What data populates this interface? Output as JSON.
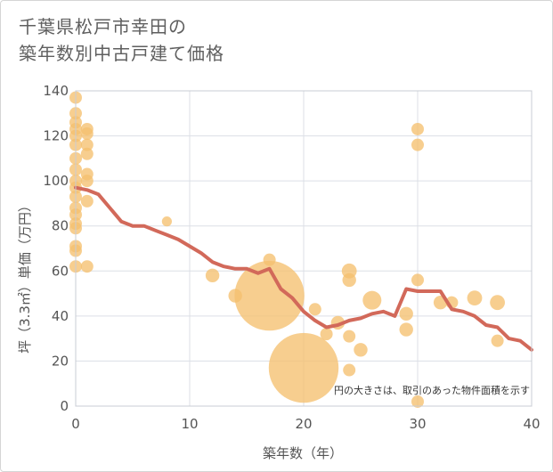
{
  "chart_data": {
    "type": "scatter",
    "title_lines": [
      "千葉県松戸市幸田の",
      "築年数別中古戸建て価格"
    ],
    "xlabel": "築年数（年）",
    "ylabel": "坪（3.3㎡）単価（万円）",
    "xlim": [
      0,
      40
    ],
    "ylim": [
      0,
      140
    ],
    "x_ticks": [
      0,
      10,
      20,
      30,
      40
    ],
    "y_ticks": [
      0,
      20,
      40,
      60,
      80,
      100,
      120,
      140
    ],
    "grid": true,
    "note": "円の大きさは、取引のあった物件面積を示す",
    "bubble_color": "#f5c06f",
    "line_color": "#d2695a",
    "points": [
      {
        "x": 0,
        "y": 137,
        "s": 1
      },
      {
        "x": 0,
        "y": 130,
        "s": 1
      },
      {
        "x": 0,
        "y": 126,
        "s": 1
      },
      {
        "x": 0,
        "y": 123,
        "s": 1
      },
      {
        "x": 0,
        "y": 120,
        "s": 1
      },
      {
        "x": 0,
        "y": 116,
        "s": 1
      },
      {
        "x": 0,
        "y": 110,
        "s": 1
      },
      {
        "x": 0,
        "y": 105,
        "s": 1
      },
      {
        "x": 0,
        "y": 100,
        "s": 1
      },
      {
        "x": 0,
        "y": 97,
        "s": 1
      },
      {
        "x": 0,
        "y": 93,
        "s": 1
      },
      {
        "x": 0,
        "y": 88,
        "s": 1
      },
      {
        "x": 0,
        "y": 85,
        "s": 1
      },
      {
        "x": 0,
        "y": 81,
        "s": 1
      },
      {
        "x": 0,
        "y": 79,
        "s": 1
      },
      {
        "x": 0,
        "y": 71,
        "s": 1
      },
      {
        "x": 0,
        "y": 69,
        "s": 1
      },
      {
        "x": 0,
        "y": 62,
        "s": 1
      },
      {
        "x": 1,
        "y": 123,
        "s": 1
      },
      {
        "x": 1,
        "y": 121,
        "s": 1
      },
      {
        "x": 1,
        "y": 116,
        "s": 1
      },
      {
        "x": 1,
        "y": 112,
        "s": 1
      },
      {
        "x": 1,
        "y": 103,
        "s": 1
      },
      {
        "x": 1,
        "y": 100,
        "s": 1
      },
      {
        "x": 1,
        "y": 91,
        "s": 1
      },
      {
        "x": 1,
        "y": 62,
        "s": 1
      },
      {
        "x": 8,
        "y": 82,
        "s": 0.8
      },
      {
        "x": 12,
        "y": 58,
        "s": 1.1
      },
      {
        "x": 14,
        "y": 49,
        "s": 1.1
      },
      {
        "x": 17,
        "y": 65,
        "s": 1
      },
      {
        "x": 17,
        "y": 49,
        "s": 5.6
      },
      {
        "x": 20,
        "y": 17,
        "s": 5.6
      },
      {
        "x": 21,
        "y": 43,
        "s": 1
      },
      {
        "x": 22,
        "y": 32,
        "s": 1
      },
      {
        "x": 23,
        "y": 37,
        "s": 1.1
      },
      {
        "x": 24,
        "y": 60,
        "s": 1.2
      },
      {
        "x": 24,
        "y": 56,
        "s": 1.1
      },
      {
        "x": 24,
        "y": 31,
        "s": 1
      },
      {
        "x": 24,
        "y": 16,
        "s": 1
      },
      {
        "x": 25,
        "y": 25,
        "s": 1.1
      },
      {
        "x": 26,
        "y": 47,
        "s": 1.5
      },
      {
        "x": 29,
        "y": 41,
        "s": 1.1
      },
      {
        "x": 29,
        "y": 34,
        "s": 1.1
      },
      {
        "x": 30,
        "y": 123,
        "s": 1
      },
      {
        "x": 30,
        "y": 116,
        "s": 1
      },
      {
        "x": 30,
        "y": 56,
        "s": 1
      },
      {
        "x": 30,
        "y": 2,
        "s": 1
      },
      {
        "x": 32,
        "y": 46,
        "s": 1.1
      },
      {
        "x": 33,
        "y": 46,
        "s": 1
      },
      {
        "x": 35,
        "y": 48,
        "s": 1.2
      },
      {
        "x": 37,
        "y": 46,
        "s": 1.2
      },
      {
        "x": 37,
        "y": 29,
        "s": 1
      }
    ],
    "trend": {
      "x": [
        0,
        1,
        2,
        3,
        4,
        5,
        6,
        7,
        8,
        9,
        10,
        11,
        12,
        13,
        14,
        15,
        16,
        17,
        18,
        19,
        20,
        21,
        22,
        23,
        24,
        25,
        26,
        27,
        28,
        29,
        30,
        31,
        32,
        33,
        34,
        35,
        36,
        37,
        38,
        39,
        40
      ],
      "y": [
        97,
        96,
        94,
        88,
        82,
        80,
        80,
        78,
        76,
        74,
        71,
        68,
        64,
        62,
        61,
        61,
        59,
        61,
        52,
        48,
        42,
        38,
        35,
        36,
        38,
        39,
        41,
        42,
        40,
        52,
        51,
        51,
        51,
        43,
        42,
        40,
        36,
        35,
        30,
        29,
        25
      ]
    }
  }
}
